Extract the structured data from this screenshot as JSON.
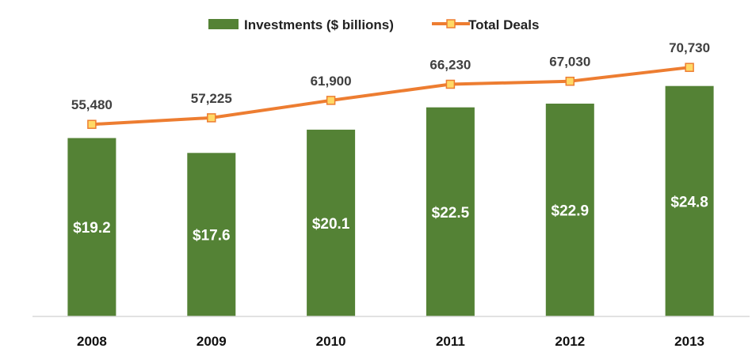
{
  "chart_data": {
    "type": "bar",
    "categories": [
      "2008",
      "2009",
      "2010",
      "2011",
      "2012",
      "2013"
    ],
    "series": [
      {
        "name": "Investments ($ billions)",
        "type": "bar",
        "values": [
          19.2,
          17.6,
          20.1,
          22.5,
          22.9,
          24.8
        ],
        "labels": [
          "$19.2",
          "$17.6",
          "$20.1",
          "$22.5",
          "$22.9",
          "$24.8"
        ],
        "color": "#548235"
      },
      {
        "name": "Total Deals",
        "type": "line",
        "values": [
          55480,
          57225,
          61900,
          66230,
          67030,
          70730
        ],
        "labels": [
          "55,480",
          "57,225",
          "61,900",
          "66,230",
          "67,030",
          "70,730"
        ],
        "color": "#ED7D31",
        "marker_color": "#FFD966"
      }
    ],
    "legend": "top",
    "grid": false,
    "ylim_bars": [
      0,
      30
    ],
    "ylim_line": [
      25000,
      80000
    ]
  }
}
